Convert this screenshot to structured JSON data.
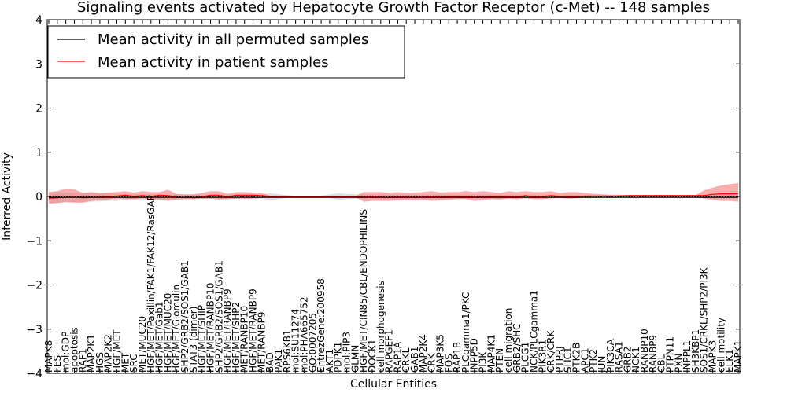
{
  "chart_data": {
    "type": "line",
    "title": "Signaling events activated by Hepatocyte Growth Factor Receptor (c-Met) -- 148 samples",
    "xlabel": "Cellular Entities",
    "ylabel": "Inferred Activity",
    "ylim": [
      -4,
      4
    ],
    "yticks": [
      -4,
      -3,
      -2,
      -1,
      0,
      1,
      2,
      3,
      4
    ],
    "ytick_labels": [
      "−4",
      "−3",
      "−2",
      "−1",
      "0",
      "1",
      "2",
      "3",
      "4"
    ],
    "grid": false,
    "legend_position": "top-left",
    "categories": [
      "MAPK8",
      "FES",
      "mol:GDP",
      "apoptosis",
      "RAF1",
      "MAP2K1",
      "HGS",
      "MAP2K2",
      "HGF/MET",
      "MET",
      "SRC",
      "MET/MUC20",
      "HGF/MET/Paxillin/FAK1/FAK12/RasGAP",
      "HGF/MET/Gab1",
      "HGF/MET/MUC20",
      "HGF/MET/Glomulin",
      "SHP2/GRB2/SOS1/GAB1",
      "STAT3 (dimer)",
      "HGF/MET/SHIP",
      "HGF/MET/RANBP10",
      "SHP2/GRB2/SOS1/GAB1",
      "HGF/MET/RANBP9",
      "HGF/MET/SHP2",
      "MET/RANBP10",
      "HGF/MET/RANBP9",
      "MET/RANBP9",
      "BAD",
      "PAK1",
      "RPS6KB1",
      "mol:SU11274",
      "mol:PHA665752",
      "GO:0007205",
      "EntrezGene:200958",
      "AKT1",
      "PDPK1",
      "mol:PIP3",
      "GLMN",
      "HGF/MET/CIN85/CBL/ENDOPHILINS",
      "DOCK1",
      "cell morphogenesis",
      "RAPGEF1",
      "RAP1A",
      "CRKL",
      "GAB1",
      "MAP2K4",
      "CRK",
      "MAP3K5",
      "FOS",
      "RAP1B",
      "PLCgamma1/PKC",
      "INPP5D",
      "PI3K",
      "MAP4K1",
      "PTEN",
      "cell migration",
      "GRB2/SHC",
      "PLCG1",
      "NCK/PLCgamma1",
      "PIK3R1",
      "CRK/CRK",
      "PTPRJ",
      "SHC1",
      "PTK2B",
      "APC1",
      "PTK2",
      "JUN",
      "PIK3CA",
      "RASA1",
      "GRB2",
      "NCK1",
      "RANBP10",
      "RANBP9",
      "CBL",
      "PTPN11",
      "PXN",
      "INPPL1",
      "SH3KBP1",
      "SOS1/CRKL/SHP2/PI3K",
      "MAPK3",
      "cell motility",
      "ELK1",
      "MAPK1"
    ],
    "x": [
      0,
      1,
      2,
      3,
      4,
      5,
      6,
      7,
      8,
      9,
      10,
      11,
      12,
      13,
      14,
      15,
      16,
      17,
      18,
      19,
      20,
      21,
      22,
      23,
      24,
      25,
      26,
      27,
      28,
      29,
      30,
      31,
      32,
      33,
      34,
      35,
      36,
      37,
      38,
      39,
      40,
      41,
      42,
      43,
      44,
      45,
      46,
      47,
      48,
      49,
      50,
      51,
      52,
      53,
      54,
      55,
      56,
      57,
      58,
      59,
      60,
      61,
      62,
      63,
      64,
      65,
      66,
      67,
      68,
      69,
      70,
      71,
      72,
      73,
      74,
      75,
      76,
      77,
      78,
      79,
      80,
      81
    ],
    "series": [
      {
        "name": "Mean activity in all permuted samples",
        "color": "#000000",
        "values": [
          -0.02,
          -0.02,
          -0.02,
          -0.02,
          -0.02,
          -0.02,
          -0.02,
          -0.02,
          -0.02,
          -0.02,
          -0.02,
          -0.02,
          -0.02,
          -0.02,
          -0.02,
          -0.02,
          -0.02,
          -0.02,
          -0.02,
          -0.02,
          -0.02,
          -0.02,
          -0.02,
          -0.02,
          -0.02,
          -0.02,
          -0.02,
          -0.02,
          -0.02,
          -0.02,
          -0.02,
          -0.02,
          -0.02,
          -0.02,
          -0.02,
          -0.02,
          -0.02,
          -0.02,
          -0.02,
          -0.02,
          -0.02,
          -0.02,
          -0.02,
          -0.02,
          -0.02,
          -0.02,
          -0.02,
          -0.02,
          -0.02,
          -0.02,
          -0.02,
          -0.02,
          -0.02,
          -0.02,
          -0.02,
          -0.02,
          -0.02,
          -0.02,
          -0.02,
          -0.02,
          -0.02,
          -0.02,
          -0.02,
          -0.02,
          -0.02,
          -0.02,
          -0.02,
          -0.02,
          -0.02,
          -0.02,
          -0.02,
          -0.02,
          -0.02,
          -0.02,
          -0.02,
          -0.02,
          -0.02,
          -0.02,
          -0.02,
          -0.02,
          -0.02,
          -0.02
        ],
        "band_lower": [
          -0.15,
          -0.14,
          -0.14,
          -0.13,
          -0.12,
          -0.12,
          -0.11,
          -0.1,
          -0.1,
          -0.08,
          -0.08,
          -0.07,
          -0.07,
          -0.07,
          -0.07,
          -0.06,
          -0.06,
          -0.06,
          -0.05,
          -0.05,
          -0.05,
          -0.05,
          -0.05,
          -0.05,
          -0.05,
          -0.05,
          -0.09,
          -0.06,
          -0.03,
          -0.02,
          -0.02,
          -0.02,
          -0.02,
          -0.04,
          -0.08,
          -0.06,
          -0.05,
          -0.05,
          -0.05,
          -0.06,
          -0.06,
          -0.06,
          -0.06,
          -0.06,
          -0.06,
          -0.06,
          -0.06,
          -0.05,
          -0.05,
          -0.05,
          -0.05,
          -0.05,
          -0.05,
          -0.05,
          -0.04,
          -0.04,
          -0.04,
          -0.04,
          -0.04,
          -0.04,
          -0.04,
          -0.04,
          -0.04,
          -0.04,
          -0.04,
          -0.03,
          -0.03,
          -0.03,
          -0.03,
          -0.03,
          -0.03,
          -0.03,
          -0.03,
          -0.03,
          -0.03,
          -0.03,
          -0.03,
          -0.04,
          -0.05,
          -0.05,
          -0.05,
          -0.05
        ],
        "band_upper": [
          0.1,
          0.1,
          0.09,
          0.09,
          0.08,
          0.08,
          0.07,
          0.07,
          0.06,
          0.06,
          0.05,
          0.05,
          0.05,
          0.05,
          0.04,
          0.04,
          0.04,
          0.04,
          0.04,
          0.04,
          0.04,
          0.04,
          0.04,
          0.04,
          0.04,
          0.04,
          0.08,
          0.05,
          0.03,
          0.02,
          0.02,
          0.02,
          0.02,
          0.05,
          0.08,
          0.06,
          0.05,
          0.05,
          0.05,
          0.05,
          0.04,
          0.04,
          0.04,
          0.04,
          0.04,
          0.04,
          0.04,
          0.04,
          0.04,
          0.04,
          0.04,
          0.04,
          0.04,
          0.04,
          0.03,
          0.03,
          0.03,
          0.03,
          0.03,
          0.03,
          0.03,
          0.03,
          0.03,
          0.03,
          0.03,
          0.03,
          0.03,
          0.03,
          0.03,
          0.03,
          0.03,
          0.03,
          0.03,
          0.03,
          0.03,
          0.03,
          0.03,
          0.04,
          0.05,
          0.05,
          0.05,
          0.05
        ],
        "band_color": "#bbbbbb"
      },
      {
        "name": "Mean activity in patient samples",
        "color": "#ff0000",
        "values": [
          -0.04,
          -0.03,
          -0.02,
          -0.01,
          -0.03,
          -0.02,
          -0.01,
          0.0,
          0.01,
          0.03,
          0.0,
          0.02,
          0.0,
          0.03,
          0.02,
          -0.02,
          -0.02,
          -0.03,
          -0.01,
          0.03,
          0.03,
          -0.01,
          0.03,
          0.03,
          0.03,
          0.02,
          0.0,
          0.0,
          0.0,
          0.0,
          0.0,
          0.0,
          0.0,
          0.0,
          0.0,
          0.0,
          0.0,
          -0.01,
          -0.01,
          -0.01,
          -0.02,
          -0.01,
          -0.01,
          -0.02,
          -0.01,
          -0.01,
          -0.01,
          0.0,
          0.0,
          0.0,
          -0.01,
          -0.01,
          0.0,
          0.0,
          0.0,
          -0.01,
          0.02,
          -0.01,
          0.0,
          0.02,
          0.0,
          0.0,
          0.0,
          0.01,
          0.01,
          0.01,
          0.01,
          0.01,
          0.02,
          0.02,
          0.02,
          0.02,
          0.02,
          0.02,
          0.02,
          0.02,
          0.02,
          0.02,
          0.05,
          0.06,
          0.06,
          0.06
        ],
        "band_lower": [
          -0.16,
          -0.15,
          -0.12,
          -0.14,
          -0.14,
          -0.1,
          -0.08,
          -0.07,
          -0.04,
          -0.06,
          -0.06,
          -0.04,
          -0.06,
          -0.07,
          -0.1,
          -0.07,
          -0.06,
          -0.06,
          -0.05,
          -0.05,
          -0.07,
          -0.06,
          -0.05,
          -0.05,
          -0.05,
          -0.03,
          -0.02,
          -0.02,
          -0.02,
          -0.01,
          -0.01,
          -0.01,
          -0.01,
          -0.01,
          -0.01,
          -0.01,
          -0.01,
          -0.12,
          -0.1,
          -0.1,
          -0.1,
          -0.09,
          -0.08,
          -0.09,
          -0.08,
          -0.1,
          -0.09,
          -0.08,
          -0.06,
          -0.06,
          -0.1,
          -0.08,
          -0.06,
          -0.07,
          -0.05,
          -0.06,
          -0.04,
          -0.06,
          -0.06,
          -0.04,
          -0.03,
          -0.05,
          -0.04,
          -0.03,
          -0.02,
          -0.02,
          -0.02,
          -0.02,
          -0.01,
          -0.01,
          -0.01,
          -0.01,
          -0.01,
          -0.01,
          -0.01,
          -0.01,
          -0.01,
          -0.05,
          -0.08,
          -0.1,
          -0.1,
          -0.12
        ],
        "band_upper": [
          0.1,
          0.12,
          0.18,
          0.16,
          0.08,
          0.1,
          0.08,
          0.09,
          0.1,
          0.12,
          0.09,
          0.12,
          0.1,
          0.1,
          0.15,
          0.06,
          0.05,
          0.05,
          0.08,
          0.12,
          0.12,
          0.06,
          0.1,
          0.1,
          0.09,
          0.08,
          0.02,
          0.02,
          0.02,
          0.01,
          0.01,
          0.01,
          0.01,
          0.01,
          0.01,
          0.01,
          0.01,
          0.1,
          0.1,
          0.1,
          0.08,
          0.1,
          0.08,
          0.09,
          0.1,
          0.12,
          0.09,
          0.1,
          0.1,
          0.12,
          0.1,
          0.12,
          0.1,
          0.08,
          0.12,
          0.1,
          0.12,
          0.1,
          0.1,
          0.12,
          0.08,
          0.1,
          0.1,
          0.08,
          0.06,
          0.05,
          0.04,
          0.04,
          0.03,
          0.03,
          0.03,
          0.03,
          0.03,
          0.03,
          0.03,
          0.03,
          0.03,
          0.14,
          0.2,
          0.25,
          0.28,
          0.3
        ],
        "band_color": "#f36b6b"
      }
    ]
  }
}
